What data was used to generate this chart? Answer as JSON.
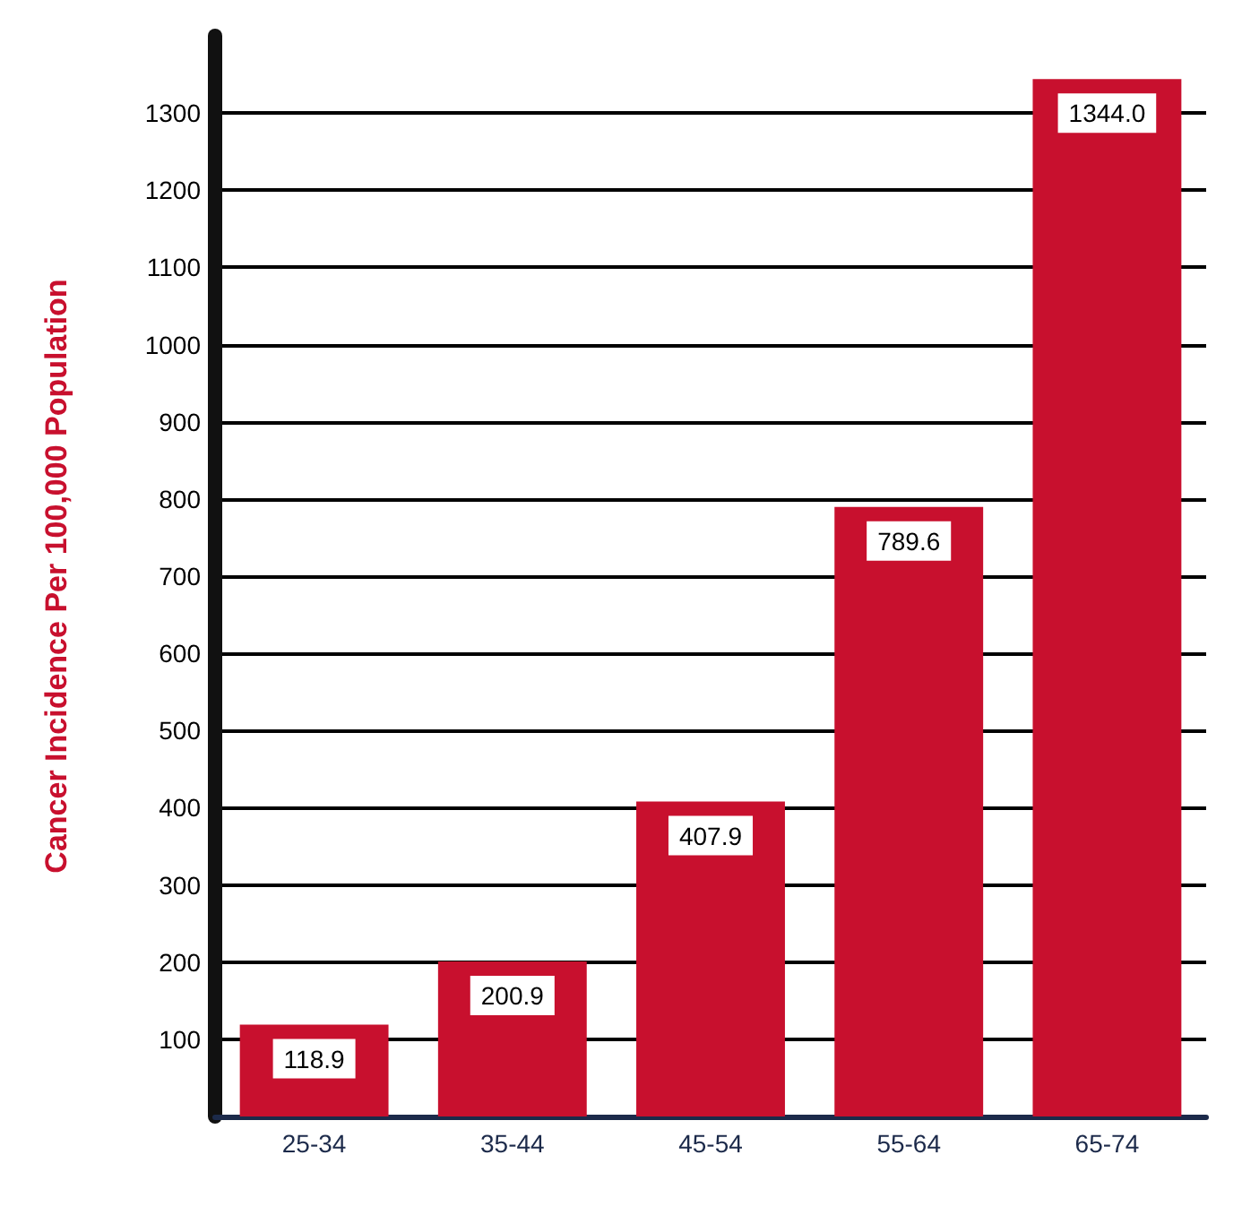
{
  "chart_data": {
    "type": "bar",
    "ylabel": "Cancer Incidence Per 100,000 Population",
    "categories": [
      "25-34",
      "35-44",
      "45-54",
      "55-64",
      "65-74"
    ],
    "values": [
      118.9,
      200.9,
      407.9,
      789.6,
      1344.0
    ],
    "value_labels": [
      "118.9",
      "200.9",
      "407.9",
      "789.6",
      "1344.0"
    ],
    "color": "#c8102e",
    "ylim": [
      0,
      1400
    ],
    "yticks": [
      100,
      200,
      300,
      400,
      500,
      600,
      700,
      800,
      900,
      1000,
      1100,
      1200,
      1300
    ],
    "grid": "y"
  }
}
